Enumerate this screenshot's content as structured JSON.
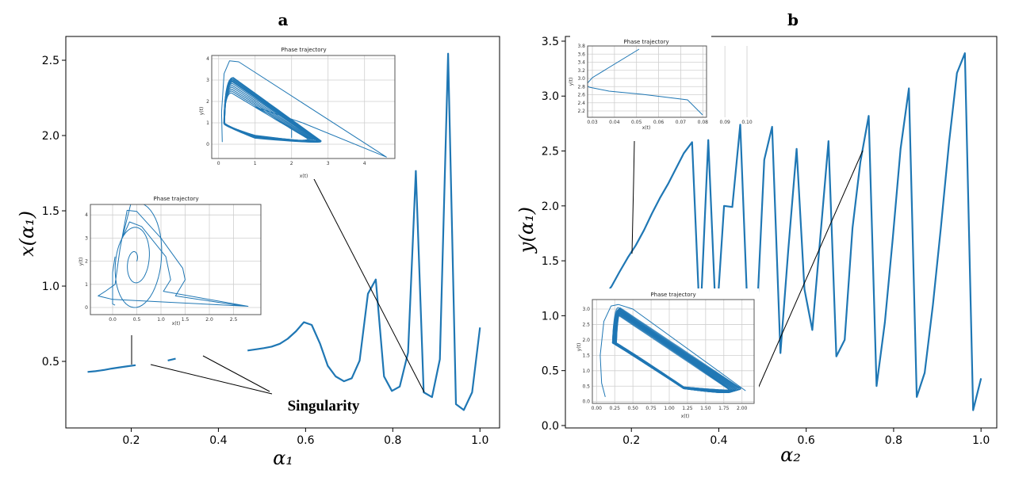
{
  "colors": {
    "series": "#1f77b4",
    "annotation": "#000000",
    "grid": "#cfcfcf"
  },
  "chart_data": [
    {
      "panel": "a",
      "type": "line",
      "xlabel": "α₁",
      "ylabel": "x(α₁)",
      "xlim": [
        0.05,
        1.045
      ],
      "ylim": [
        0.058,
        2.658
      ],
      "xticks": [
        "0.2",
        "0.4",
        "0.6",
        "0.8",
        "1.0"
      ],
      "yticks": [
        "0.5",
        "1.0",
        "1.5",
        "2.0",
        "2.5"
      ],
      "grid": false,
      "annotation": "Singularity",
      "x": [
        0.1,
        0.118,
        0.137,
        0.155,
        0.173,
        0.192,
        0.21,
        0.229,
        0.247,
        0.265,
        0.284,
        0.302,
        0.32,
        0.339,
        0.357,
        0.376,
        0.394,
        0.412,
        0.431,
        0.449,
        0.467,
        0.486,
        0.504,
        0.522,
        0.541,
        0.559,
        0.578,
        0.596,
        0.614,
        0.633,
        0.651,
        0.669,
        0.688,
        0.706,
        0.724,
        0.743,
        0.761,
        0.78,
        0.798,
        0.816,
        0.835,
        0.853,
        0.871,
        0.89,
        0.908,
        0.927,
        0.945,
        0.963,
        0.982,
        1.0
      ],
      "y": [
        0.43,
        0.435,
        0.443,
        0.452,
        0.46,
        0.468,
        0.475,
        null,
        null,
        null,
        0.506,
        0.518,
        null,
        null,
        null,
        null,
        null,
        null,
        null,
        null,
        0.572,
        0.58,
        0.588,
        0.598,
        0.617,
        0.65,
        0.7,
        0.76,
        0.742,
        0.619,
        0.47,
        0.4,
        0.368,
        0.388,
        0.505,
        0.949,
        1.044,
        0.4,
        0.304,
        0.333,
        0.558,
        1.765,
        0.295,
        0.263,
        0.514,
        2.544,
        0.216,
        0.177,
        0.295,
        0.725
      ]
    },
    {
      "panel": "b",
      "type": "line",
      "xlabel": "α₂",
      "ylabel": "y(α₁)",
      "xlim": [
        0.049,
        1.036
      ],
      "ylim": [
        -0.022,
        3.543
      ],
      "xticks": [
        "0.2",
        "0.4",
        "0.6",
        "0.8",
        "1.0"
      ],
      "yticks": [
        "0.0",
        "0.5",
        "1.0",
        "1.5",
        "2.0",
        "2.5",
        "3.0",
        "3.5"
      ],
      "grid": false,
      "x": [
        0.1,
        0.118,
        0.137,
        0.155,
        0.173,
        0.192,
        0.21,
        0.229,
        0.247,
        0.265,
        0.284,
        0.302,
        0.32,
        0.339,
        0.357,
        0.376,
        0.394,
        0.412,
        0.431,
        0.449,
        0.467,
        0.486,
        0.504,
        0.522,
        0.541,
        0.559,
        0.578,
        0.596,
        0.614,
        0.633,
        0.651,
        0.669,
        0.688,
        0.706,
        0.724,
        0.743,
        0.761,
        0.78,
        0.798,
        0.816,
        0.835,
        0.853,
        0.871,
        0.89,
        0.908,
        0.927,
        0.945,
        0.963,
        0.982,
        1.0
      ],
      "y": [
        1.0,
        1.07,
        1.17,
        1.27,
        1.4,
        1.53,
        1.64,
        1.78,
        1.93,
        2.07,
        2.2,
        2.34,
        2.48,
        2.58,
        0.9,
        2.6,
        0.9,
        2.0,
        1.99,
        2.74,
        0.9,
        0.9,
        2.42,
        2.72,
        0.66,
        1.6,
        2.52,
        1.24,
        0.87,
        1.75,
        2.59,
        0.63,
        0.78,
        1.8,
        2.4,
        2.82,
        0.36,
        0.94,
        1.7,
        2.52,
        3.07,
        0.26,
        0.48,
        1.1,
        1.8,
        2.58,
        3.21,
        3.39,
        0.14,
        0.43
      ]
    }
  ],
  "insets": {
    "a_top": {
      "title": "Phase trajectory",
      "xlabel": "x(t)",
      "ylabel": "y(t)",
      "xticks": [
        "0",
        "1",
        "2",
        "3",
        "4"
      ],
      "yticks": [
        "0",
        "1",
        "2",
        "3",
        "4"
      ]
    },
    "a_left": {
      "title": "Phase trajectory",
      "xlabel": "x(t)",
      "ylabel": "y(t)",
      "xticks": [
        "0.0",
        "0.5",
        "1.0",
        "1.5",
        "2.0",
        "2.5"
      ],
      "yticks": [
        "0",
        "1",
        "2",
        "3",
        "4"
      ]
    },
    "b_top": {
      "title": "Phase trajectory",
      "xlabel": "x(t)",
      "ylabel": "y(t)",
      "xticks": [
        "0.03",
        "0.04",
        "0.05",
        "0.06",
        "0.07",
        "0.08",
        "0.09",
        "0.10"
      ],
      "yticks": [
        "2.2",
        "2.4",
        "2.6",
        "2.8",
        "3.0",
        "3.2",
        "3.4",
        "3.6",
        "3.8"
      ]
    },
    "b_bottom": {
      "title": "Phase trajectory",
      "xlabel": "x(t)",
      "ylabel": "y(t)",
      "xticks": [
        "0.00",
        "0.25",
        "0.50",
        "0.75",
        "1.00",
        "1.25",
        "1.50",
        "1.75",
        "2.00"
      ],
      "yticks": [
        "0.0",
        "0.5",
        "1.0",
        "1.5",
        "2.0",
        "2.5",
        "3.0"
      ]
    }
  }
}
